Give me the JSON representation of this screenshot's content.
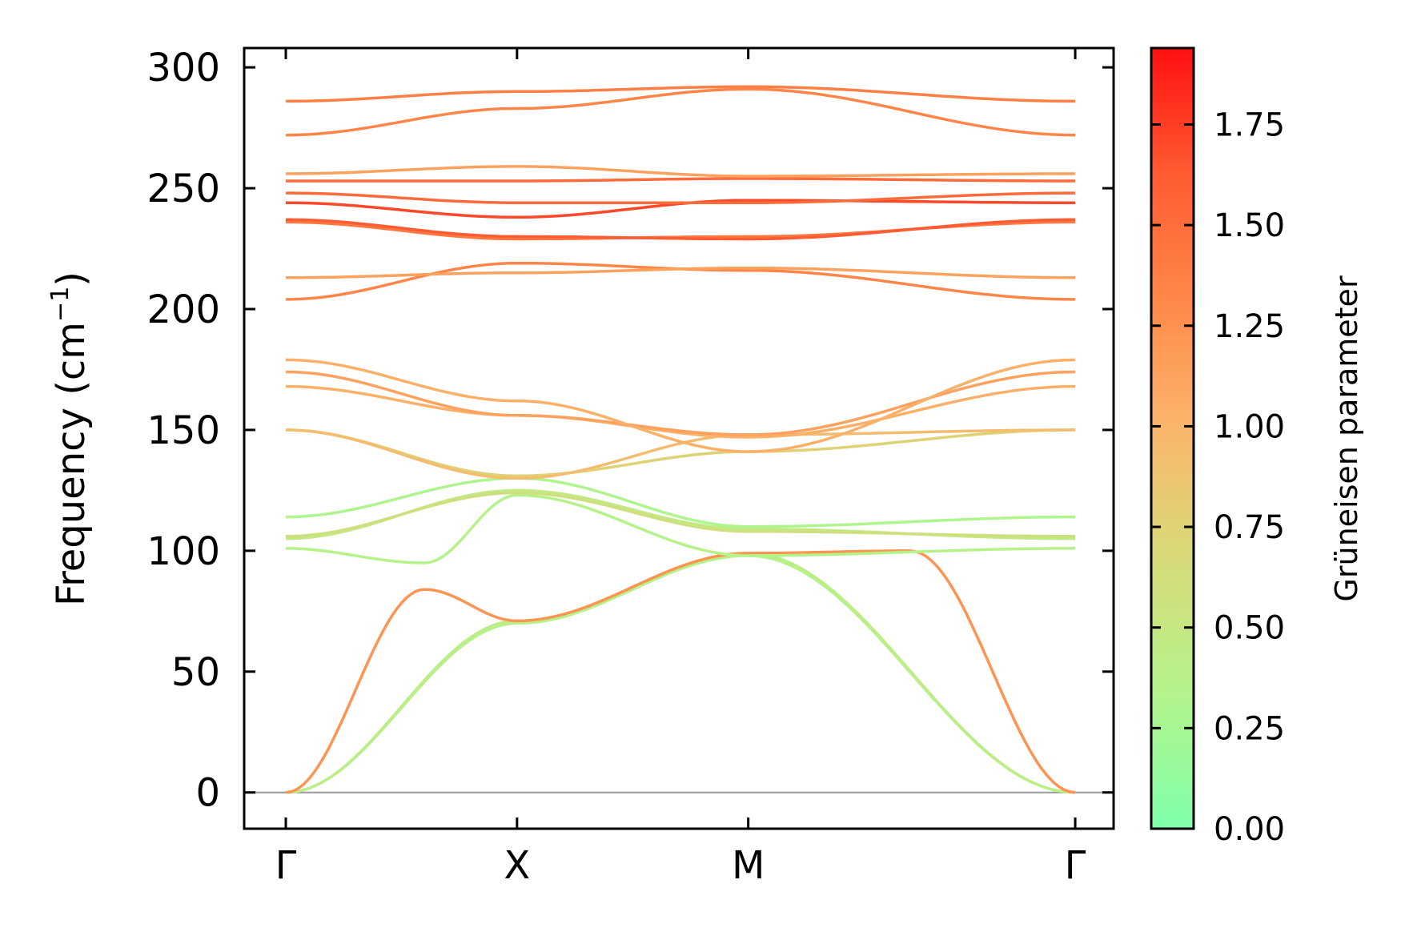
{
  "chart_data": {
    "type": "line",
    "title": "",
    "ylabel": "Frequency (cm",
    "ylabel_sup": "−1",
    "ylabel_close": ")",
    "ylim": [
      -15,
      308
    ],
    "yticks": [
      0,
      50,
      100,
      150,
      200,
      250,
      300
    ],
    "ytick_labels": [
      "0",
      "50",
      "100",
      "150",
      "200",
      "250",
      "300"
    ],
    "x_path_labels": [
      "Γ",
      "X",
      "M",
      "Γ"
    ],
    "x_path_positions": [
      0,
      1,
      2,
      3.414
    ],
    "xlim": [
      -0.18,
      3.58
    ],
    "grid": false,
    "zero_line_color": "#999999",
    "colorbar": {
      "label": "Grüneisen parameter",
      "range": [
        0,
        1.94
      ],
      "ticks": [
        0.0,
        0.25,
        0.5,
        0.75,
        1.0,
        1.25,
        1.5,
        1.75
      ],
      "tick_labels": [
        "0.00",
        "0.25",
        "0.50",
        "0.75",
        "1.00",
        "1.25",
        "1.50",
        "1.75"
      ],
      "colormap": [
        "#7fffaa",
        "#b3f48c",
        "#dad878",
        "#fbb46c",
        "#ff8748",
        "#ff5a32",
        "#ff1010"
      ]
    },
    "series": [
      {
        "gamma": 0.35,
        "x": [
          0,
          1,
          2,
          3.414
        ],
        "y": [
          0,
          70,
          98,
          0
        ]
      },
      {
        "gamma": 0.4,
        "x": [
          0,
          1,
          2,
          3.414
        ],
        "y": [
          0,
          71,
          99,
          0
        ]
      },
      {
        "gamma": 1.2,
        "x": [
          0,
          0.6,
          1,
          2,
          2.7,
          3.414
        ],
        "y": [
          0,
          84,
          71,
          99,
          100,
          0
        ]
      },
      {
        "gamma": 0.35,
        "x": [
          0,
          0.6,
          1,
          2,
          3.414
        ],
        "y": [
          101,
          95,
          123,
          98,
          101
        ]
      },
      {
        "gamma": 0.45,
        "x": [
          0,
          1,
          2,
          3.414
        ],
        "y": [
          105,
          125,
          109,
          105
        ]
      },
      {
        "gamma": 0.55,
        "x": [
          0,
          1,
          2,
          3.414
        ],
        "y": [
          106,
          124,
          108,
          106
        ]
      },
      {
        "gamma": 0.3,
        "x": [
          0,
          1,
          2,
          3.414
        ],
        "y": [
          114,
          130,
          110,
          114
        ]
      },
      {
        "gamma": 0.7,
        "x": [
          0,
          1,
          2,
          3.414
        ],
        "y": [
          150,
          131,
          141,
          150
        ]
      },
      {
        "gamma": 0.9,
        "x": [
          0,
          1,
          2,
          3.414
        ],
        "y": [
          150,
          130,
          148,
          150
        ]
      },
      {
        "gamma": 1.0,
        "x": [
          0,
          1,
          2,
          3.414
        ],
        "y": [
          168,
          156,
          147,
          168
        ]
      },
      {
        "gamma": 1.1,
        "x": [
          0,
          1,
          2,
          3.414
        ],
        "y": [
          174,
          156,
          148,
          174
        ]
      },
      {
        "gamma": 1.0,
        "x": [
          0,
          1,
          2,
          3.414
        ],
        "y": [
          179,
          162,
          141,
          179
        ]
      },
      {
        "gamma": 1.3,
        "x": [
          0,
          1,
          2,
          3.414
        ],
        "y": [
          204,
          219,
          216,
          204
        ]
      },
      {
        "gamma": 1.1,
        "x": [
          0,
          1,
          2,
          3.414
        ],
        "y": [
          213,
          215,
          217,
          213
        ]
      },
      {
        "gamma": 1.4,
        "x": [
          0,
          1,
          2,
          3.414
        ],
        "y": [
          236,
          229,
          230,
          236
        ]
      },
      {
        "gamma": 1.6,
        "x": [
          0,
          1,
          2,
          3.414
        ],
        "y": [
          237,
          230,
          229,
          237
        ]
      },
      {
        "gamma": 1.7,
        "x": [
          0,
          1,
          2,
          3.414
        ],
        "y": [
          244,
          238,
          245,
          244
        ]
      },
      {
        "gamma": 1.5,
        "x": [
          0,
          1,
          2,
          3.414
        ],
        "y": [
          248,
          244,
          244,
          248
        ]
      },
      {
        "gamma": 1.5,
        "x": [
          0,
          1,
          2,
          3.414
        ],
        "y": [
          253,
          253,
          254,
          253
        ]
      },
      {
        "gamma": 1.1,
        "x": [
          0,
          1,
          2,
          3.414
        ],
        "y": [
          256,
          259,
          255,
          256
        ]
      },
      {
        "gamma": 1.3,
        "x": [
          0,
          1,
          2,
          3.414
        ],
        "y": [
          272,
          283,
          291,
          272
        ]
      },
      {
        "gamma": 1.35,
        "x": [
          0,
          1,
          2,
          3.414
        ],
        "y": [
          286,
          290,
          292,
          286
        ]
      }
    ]
  }
}
